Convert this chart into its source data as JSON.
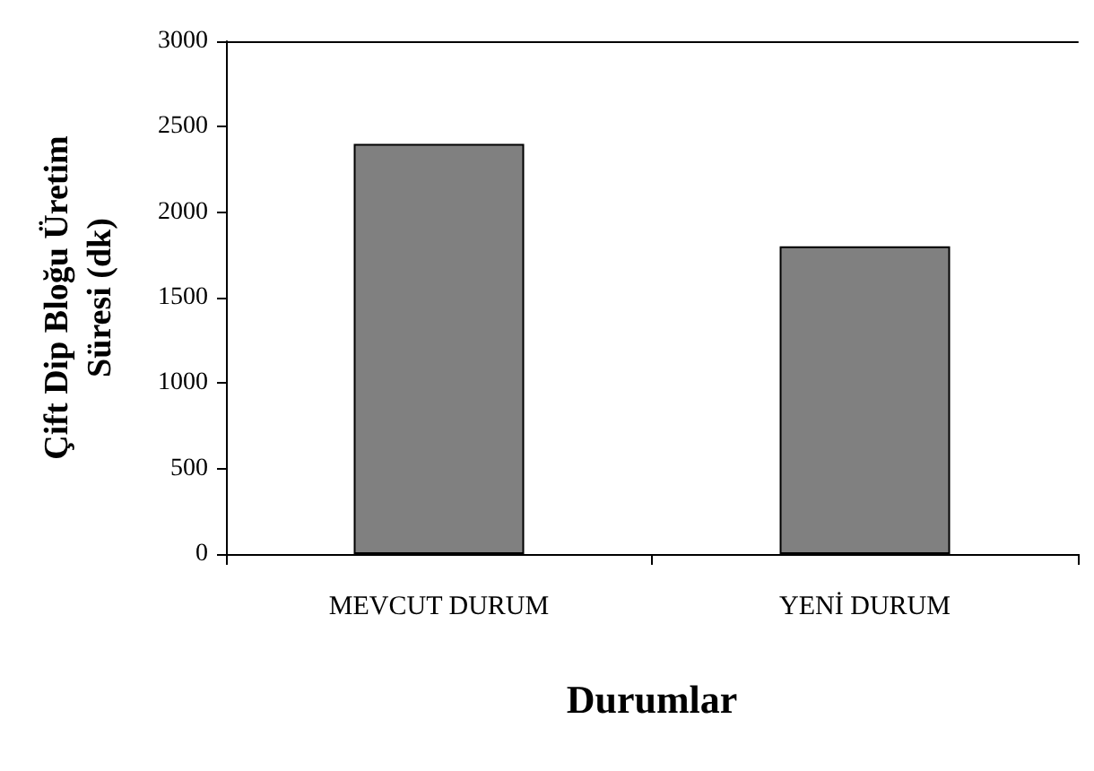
{
  "chart_data": {
    "type": "bar",
    "xlabel": "Durumlar",
    "ylabel": "Çift Dip Bloğu Üretim\nSüresi (dk)",
    "categories": [
      "MEVCUT DURUM",
      "YENİ DURUM"
    ],
    "values": [
      2400,
      1800
    ],
    "color": "#808080",
    "ylim": [
      0,
      3000
    ],
    "yticks": [
      0,
      500,
      1000,
      1500,
      2000,
      2500,
      3000
    ],
    "grid": false
  }
}
